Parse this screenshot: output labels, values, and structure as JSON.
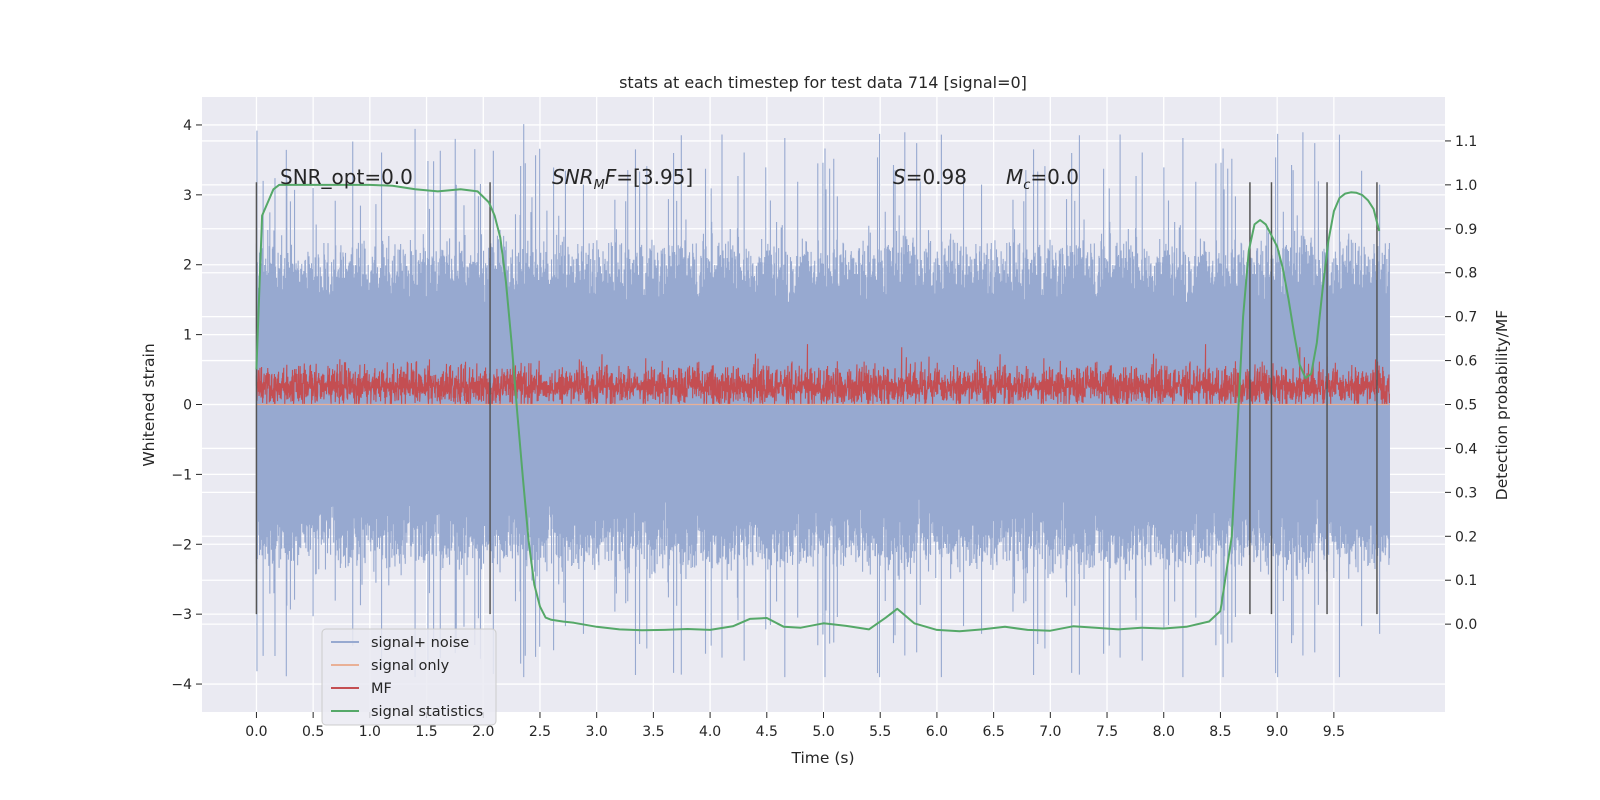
{
  "chart_data": {
    "type": "line",
    "title": "stats at each timestep for test data 714 [signal=0]",
    "xlabel": "Time (s)",
    "ylabel": "Whitened strain",
    "ylabel_right": "Detection probability/MF",
    "xlim": [
      -0.48,
      10.48
    ],
    "ylim": [
      -4.4,
      4.4
    ],
    "ylim_right": [
      -0.2,
      1.2
    ],
    "xticks": [
      "0.0",
      "0.5",
      "1.0",
      "1.5",
      "2.0",
      "2.5",
      "3.0",
      "3.5",
      "4.0",
      "4.5",
      "5.0",
      "5.5",
      "6.0",
      "6.5",
      "7.0",
      "7.5",
      "8.0",
      "8.5",
      "9.0",
      "9.5"
    ],
    "xtick_values": [
      0,
      0.5,
      1,
      1.5,
      2,
      2.5,
      3,
      3.5,
      4,
      4.5,
      5,
      5.5,
      6,
      6.5,
      7,
      7.5,
      8,
      8.5,
      9,
      9.5
    ],
    "yticks": [
      "4",
      "3",
      "2",
      "1",
      "0",
      "−1",
      "−2",
      "−3",
      "−4"
    ],
    "ytick_values": [
      4,
      3,
      2,
      1,
      0,
      -1,
      -2,
      -3,
      -4
    ],
    "yticks_right": [
      "1.1",
      "1.0",
      "0.9",
      "0.8",
      "0.7",
      "0.6",
      "0.5",
      "0.4",
      "0.3",
      "0.2",
      "0.1",
      "0.0"
    ],
    "ytick_right_values": [
      1.1,
      1.0,
      0.9,
      0.8,
      0.7,
      0.6,
      0.5,
      0.4,
      0.3,
      0.2,
      0.1,
      0.0
    ],
    "grid": true,
    "background": "#EAEAF2",
    "legend": {
      "placement": "lower-left",
      "entries": [
        {
          "label": "signal+ noise",
          "color": "#97A9D0"
        },
        {
          "label": "signal only",
          "color": "#E9B096"
        },
        {
          "label": "MF",
          "color": "#C44E52"
        },
        {
          "label": "signal statistics",
          "color": "#55A868"
        }
      ]
    },
    "annotations": [
      {
        "text": "SNR_opt=0.0",
        "x": 0.2,
        "y": 3.15
      },
      {
        "text": "=[3.95]",
        "math_symbol": "SNR",
        "math_subscript": "M",
        "math_suffix": "F",
        "x": 2.6,
        "y": 3.15
      },
      {
        "text": "=0.98",
        "math_symbol": "S",
        "x": 5.6,
        "y": 3.15
      },
      {
        "text": "=0.0",
        "math_symbol": "M",
        "math_subscript": "c",
        "x": 6.6,
        "y": 3.15
      }
    ],
    "series": [
      {
        "name": "signal+ noise",
        "color": "#97A9D0",
        "x_range": [
          0,
          9.99
        ],
        "typical_range": [
          -2.0,
          2.0
        ],
        "extremes": {
          "min": -3.9,
          "max": 4.05
        }
      },
      {
        "name": "signal only",
        "color": "#E9B096",
        "values": "0 throughout"
      },
      {
        "name": "MF",
        "color": "#C44E52",
        "x_range": [
          0,
          9.99
        ],
        "typical_range": [
          0.0,
          0.72
        ],
        "mean": 0.33,
        "max": 0.95
      },
      {
        "name": "signal statistics",
        "color": "#55A868",
        "axis": "right",
        "x": [
          0.0,
          0.05,
          0.1,
          0.15,
          0.2,
          0.3,
          0.5,
          0.8,
          1.0,
          1.2,
          1.4,
          1.6,
          1.8,
          1.95,
          2.05,
          2.1,
          2.15,
          2.2,
          2.25,
          2.3,
          2.35,
          2.4,
          2.45,
          2.5,
          2.55,
          2.6,
          2.7,
          2.8,
          3.0,
          3.2,
          3.4,
          3.6,
          3.8,
          4.0,
          4.2,
          4.35,
          4.5,
          4.65,
          4.8,
          5.0,
          5.2,
          5.4,
          5.55,
          5.65,
          5.8,
          6.0,
          6.2,
          6.4,
          6.6,
          6.8,
          7.0,
          7.2,
          7.4,
          7.6,
          7.8,
          8.0,
          8.2,
          8.4,
          8.5,
          8.6,
          8.65,
          8.7,
          8.75,
          8.8,
          8.85,
          8.9,
          8.95,
          9.0,
          9.05,
          9.1,
          9.15,
          9.2,
          9.25,
          9.3,
          9.35,
          9.4,
          9.45,
          9.5,
          9.55,
          9.6,
          9.65,
          9.7,
          9.75,
          9.8,
          9.85,
          9.9
        ],
        "y": [
          0.58,
          0.93,
          0.96,
          0.99,
          1.0,
          1.0,
          1.0,
          1.0,
          1.0,
          0.998,
          0.99,
          0.985,
          0.99,
          0.985,
          0.96,
          0.93,
          0.88,
          0.78,
          0.64,
          0.48,
          0.33,
          0.19,
          0.09,
          0.04,
          0.015,
          0.01,
          0.006,
          0.003,
          -0.006,
          -0.012,
          -0.014,
          -0.013,
          -0.011,
          -0.013,
          -0.005,
          0.012,
          0.014,
          -0.006,
          -0.008,
          0.002,
          -0.004,
          -0.012,
          0.015,
          0.035,
          0.002,
          -0.013,
          -0.016,
          -0.012,
          -0.006,
          -0.013,
          -0.015,
          -0.005,
          -0.008,
          -0.012,
          -0.008,
          -0.01,
          -0.006,
          0.006,
          0.03,
          0.2,
          0.45,
          0.7,
          0.85,
          0.91,
          0.92,
          0.91,
          0.885,
          0.86,
          0.81,
          0.74,
          0.66,
          0.59,
          0.56,
          0.57,
          0.64,
          0.76,
          0.87,
          0.94,
          0.97,
          0.98,
          0.983,
          0.982,
          0.977,
          0.965,
          0.945,
          0.895
        ]
      }
    ],
    "vertical_lines": {
      "color": "#555555",
      "x": [
        0.0,
        2.06,
        8.76,
        8.95,
        9.44,
        9.88
      ],
      "y_range": [
        -3.0,
        3.18
      ]
    }
  }
}
